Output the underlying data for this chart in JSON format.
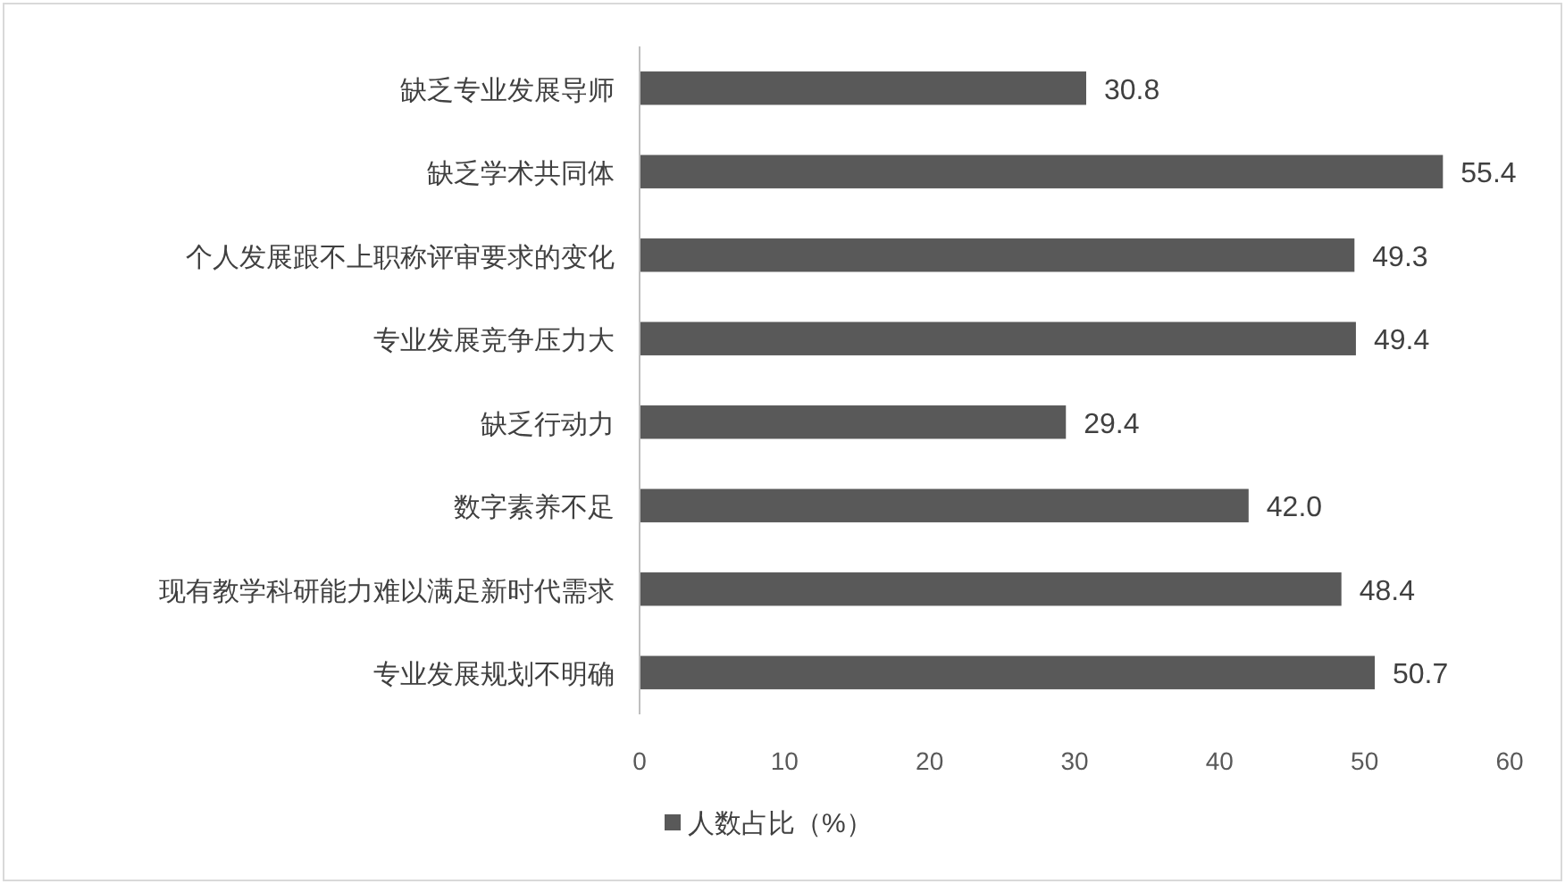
{
  "chart_data": {
    "type": "bar",
    "orientation": "horizontal",
    "categories": [
      "缺乏专业发展导师",
      "缺乏学术共同体",
      "个人发展跟不上职称评审要求的变化",
      "专业发展竞争压力大",
      "缺乏行动力",
      "数字素养不足",
      "现有教学科研能力难以满足新时代需求",
      "专业发展规划不明确"
    ],
    "series": [
      {
        "name": "人数占比（%）",
        "color": "#595959",
        "values": [
          30.8,
          55.4,
          49.3,
          49.4,
          29.4,
          42.0,
          48.4,
          50.7
        ],
        "value_labels": [
          "30.8",
          "55.4",
          "49.3",
          "49.4",
          "29.4",
          "42.0",
          "48.4",
          "50.7"
        ]
      }
    ],
    "xlim": [
      0,
      60
    ],
    "xticks": [
      0,
      10,
      20,
      30,
      40,
      50,
      60
    ],
    "grid": false,
    "legend": "bottom"
  }
}
